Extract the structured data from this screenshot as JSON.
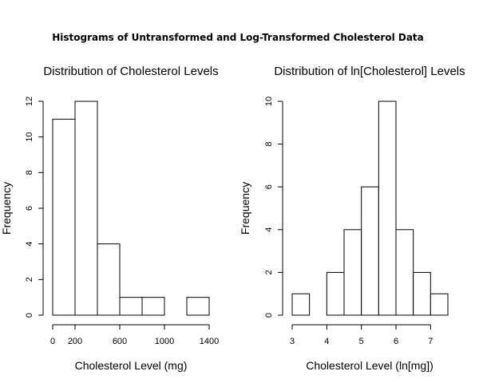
{
  "figure": {
    "title": "Histograms of Untransformed and Log-Transformed Cholesterol Data"
  },
  "chart_data": [
    {
      "type": "bar",
      "title": "Distribution of Cholesterol Levels",
      "xlabel": "Cholesterol Level (mg)",
      "ylabel": "Frequency",
      "bin_edges": [
        0,
        200,
        400,
        600,
        800,
        1000,
        1200,
        1400
      ],
      "values": [
        11,
        12,
        4,
        1,
        1,
        0,
        1
      ],
      "xticks": [
        0,
        200,
        600,
        1000,
        1400
      ],
      "xtick_labels": [
        "0",
        "200",
        "600",
        "1000",
        "1400"
      ],
      "yticks": [
        0,
        2,
        4,
        6,
        8,
        10,
        12
      ],
      "ytick_labels": [
        "0",
        "2",
        "4",
        "6",
        "8",
        "10",
        "12"
      ],
      "xlim": [
        0,
        1400
      ],
      "ylim": [
        0,
        12
      ]
    },
    {
      "type": "bar",
      "title": "Distribution of ln[Cholesterol] Levels",
      "xlabel": "Cholesterol Level (ln[mg])",
      "ylabel": "Frequency",
      "bin_edges": [
        3,
        3.5,
        4,
        4.5,
        5,
        5.5,
        6,
        6.5,
        7,
        7.5
      ],
      "values": [
        1,
        0,
        2,
        4,
        6,
        10,
        4,
        2,
        1
      ],
      "xticks": [
        3,
        4,
        5,
        6,
        7
      ],
      "xtick_labels": [
        "3",
        "4",
        "5",
        "6",
        "7"
      ],
      "yticks": [
        0,
        2,
        4,
        6,
        8,
        10
      ],
      "ytick_labels": [
        "0",
        "2",
        "4",
        "6",
        "8",
        "10"
      ],
      "xlim": [
        3,
        7.5
      ],
      "ylim": [
        0,
        10
      ]
    }
  ]
}
